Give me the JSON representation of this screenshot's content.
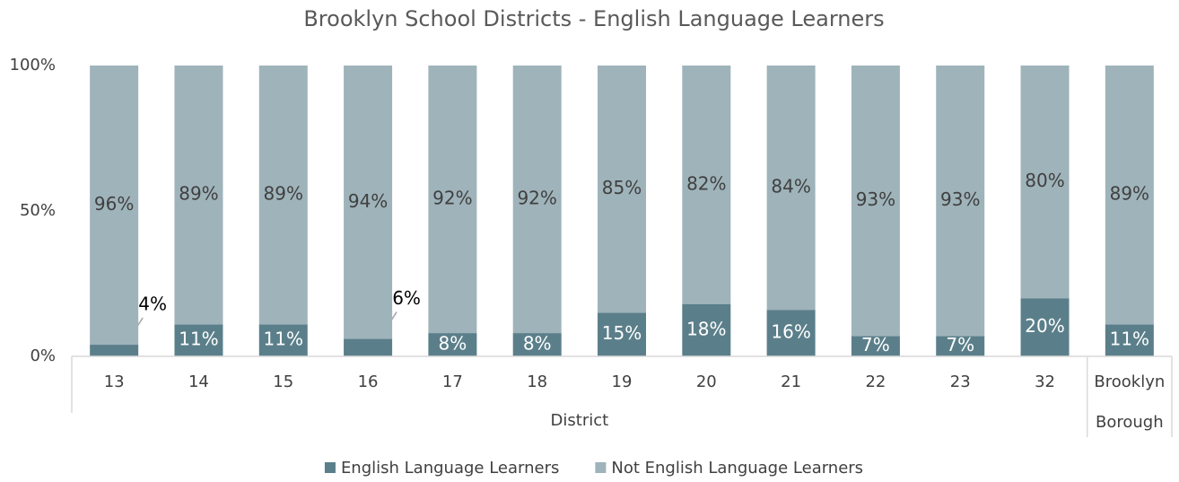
{
  "chart_data": {
    "type": "stacked_bar_100",
    "title": "Brooklyn School Districts - English Language Learners",
    "categories": [
      "13",
      "14",
      "15",
      "16",
      "17",
      "18",
      "19",
      "20",
      "21",
      "22",
      "23",
      "32",
      "Brooklyn Borough"
    ],
    "x_groups": [
      {
        "label": "District",
        "start": 0,
        "end": 11
      }
    ],
    "series": [
      {
        "name": "English Language Learners",
        "color": "#5b7f8a",
        "values": [
          4,
          11,
          11,
          6,
          8,
          8,
          15,
          18,
          16,
          7,
          7,
          20,
          11
        ],
        "value_labels": [
          "4%",
          "11%",
          "11%",
          "6%",
          "8%",
          "8%",
          "15%",
          "18%",
          "16%",
          "7%",
          "7%",
          "20%",
          "11%"
        ]
      },
      {
        "name": "Not English Language Learners",
        "color": "#9fb3ba",
        "values": [
          96,
          89,
          89,
          94,
          92,
          92,
          85,
          82,
          84,
          93,
          93,
          80,
          89
        ],
        "value_labels": [
          "96%",
          "89%",
          "89%",
          "94%",
          "92%",
          "92%",
          "85%",
          "82%",
          "84%",
          "93%",
          "93%",
          "80%",
          "89%"
        ]
      }
    ],
    "ylim": [
      0,
      100
    ],
    "yticks": [
      {
        "value": 0,
        "label": "0%"
      },
      {
        "value": 50,
        "label": "50%"
      },
      {
        "value": 100,
        "label": "100%"
      }
    ],
    "legend": "bottom"
  }
}
